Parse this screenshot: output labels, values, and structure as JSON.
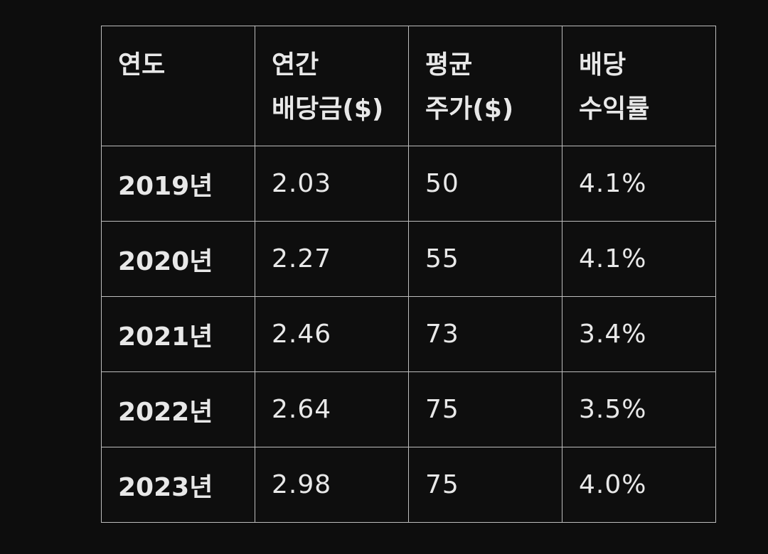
{
  "table": {
    "headers": [
      [
        "연도"
      ],
      [
        "연간",
        "배당금($)"
      ],
      [
        "평균",
        "주가($)"
      ],
      [
        "배당",
        "수익률"
      ]
    ],
    "rows": [
      [
        "2019년",
        "2.03",
        "50",
        "4.1%"
      ],
      [
        "2020년",
        "2.27",
        "55",
        "4.1%"
      ],
      [
        "2021년",
        "2.46",
        "73",
        "3.4%"
      ],
      [
        "2022년",
        "2.64",
        "75",
        "3.5%"
      ],
      [
        "2023년",
        "2.98",
        "75",
        "4.0%"
      ]
    ]
  }
}
